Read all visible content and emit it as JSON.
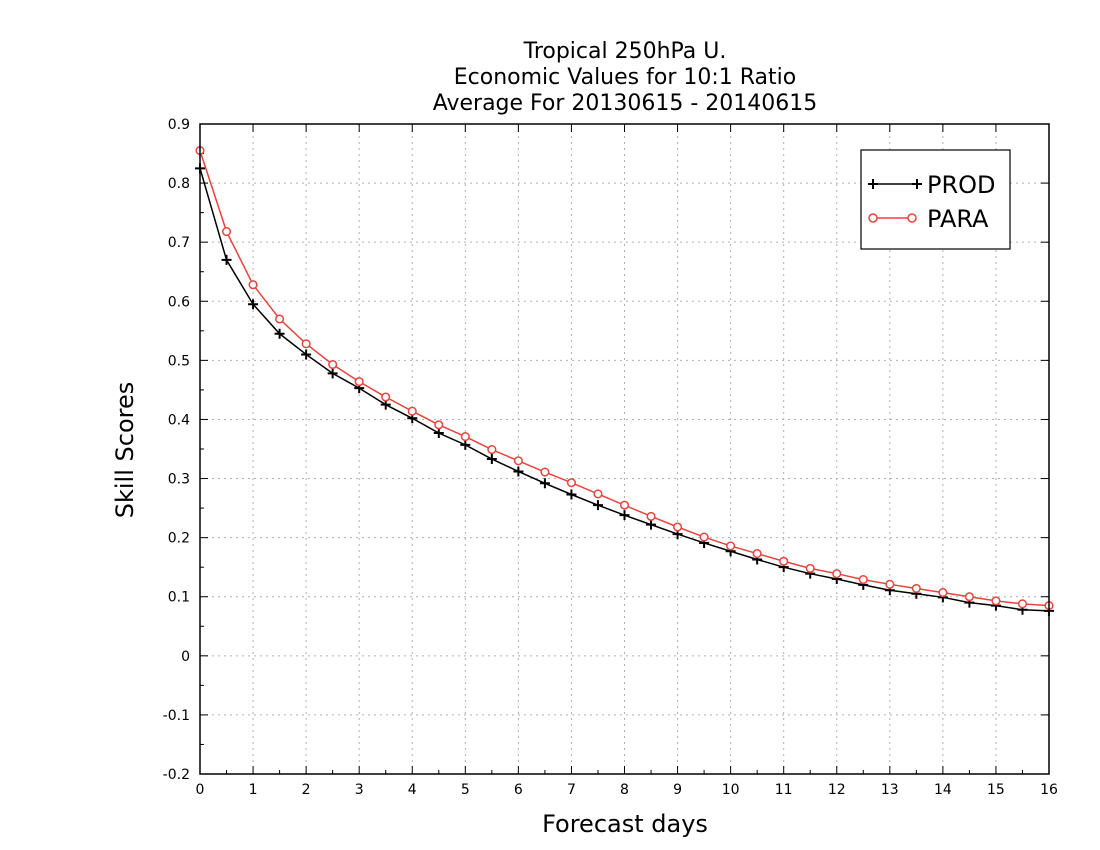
{
  "chart_data": {
    "type": "line",
    "title": [
      "Tropical 250hPa U.",
      "Economic Values for 10:1 Ratio",
      "Average For 20130615 - 20140615"
    ],
    "xlabel": "Forecast days",
    "ylabel": "Skill Scores",
    "xlim": [
      0,
      16
    ],
    "ylim": [
      -0.2,
      0.9
    ],
    "x_ticks": [
      "0",
      "1",
      "2",
      "3",
      "4",
      "5",
      "6",
      "7",
      "8",
      "9",
      "10",
      "11",
      "12",
      "13",
      "14",
      "15",
      "16"
    ],
    "y_ticks": [
      "-0.2",
      "-0.1",
      "0",
      "0.1",
      "0.2",
      "0.3",
      "0.4",
      "0.5",
      "0.6",
      "0.7",
      "0.8",
      "0.9"
    ],
    "y_tick_values": [
      -0.2,
      -0.1,
      0,
      0.1,
      0.2,
      0.3,
      0.4,
      0.5,
      0.6,
      0.7,
      0.8,
      0.9
    ],
    "grid": true,
    "legend_position": "top-right",
    "x": [
      0,
      0.5,
      1,
      1.5,
      2,
      2.5,
      3,
      3.5,
      4,
      4.5,
      5,
      5.5,
      6,
      6.5,
      7,
      7.5,
      8,
      8.5,
      9,
      9.5,
      10,
      10.5,
      11,
      11.5,
      12,
      12.5,
      13,
      13.5,
      14,
      14.5,
      15,
      15.5,
      16
    ],
    "series": [
      {
        "name": "PROD",
        "color": "#000000",
        "marker": "plus",
        "values": [
          0.825,
          0.67,
          0.595,
          0.545,
          0.51,
          0.478,
          0.453,
          0.425,
          0.402,
          0.377,
          0.357,
          0.333,
          0.312,
          0.292,
          0.273,
          0.255,
          0.238,
          0.222,
          0.206,
          0.191,
          0.177,
          0.163,
          0.15,
          0.139,
          0.13,
          0.12,
          0.111,
          0.105,
          0.099,
          0.09,
          0.085,
          0.078,
          0.076
        ]
      },
      {
        "name": "PARA",
        "color": "#e8433c",
        "marker": "circle",
        "values": [
          0.855,
          0.718,
          0.628,
          0.57,
          0.528,
          0.493,
          0.464,
          0.438,
          0.414,
          0.391,
          0.371,
          0.349,
          0.33,
          0.311,
          0.293,
          0.274,
          0.255,
          0.236,
          0.218,
          0.201,
          0.186,
          0.173,
          0.16,
          0.148,
          0.139,
          0.129,
          0.121,
          0.114,
          0.107,
          0.1,
          0.093,
          0.088,
          0.085
        ]
      }
    ]
  }
}
